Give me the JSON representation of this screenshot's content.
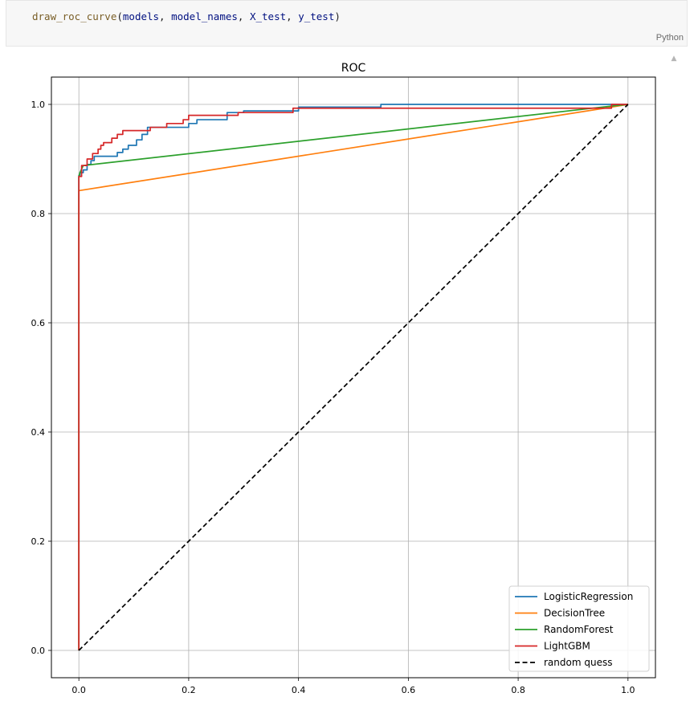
{
  "cell": {
    "code": {
      "function_name": "draw_roc_curve",
      "args": [
        "models",
        "model_names",
        "X_test",
        "y_test"
      ]
    },
    "language_label": "Python",
    "scroll_up_icon": "caret-up-icon"
  },
  "chart_data": {
    "type": "line",
    "title": "ROC",
    "xlabel": "",
    "ylabel": "",
    "xlim": [
      -0.05,
      1.05
    ],
    "ylim": [
      -0.05,
      1.05
    ],
    "xticks": [
      "0.0",
      "0.2",
      "0.4",
      "0.6",
      "0.8",
      "1.0"
    ],
    "yticks": [
      "0.0",
      "0.2",
      "0.4",
      "0.6",
      "0.8",
      "1.0"
    ],
    "grid": true,
    "legend_position": "bottom-right",
    "series": [
      {
        "name": "LogisticRegression",
        "color": "#1f77b4",
        "dash": false,
        "x": [
          0,
          0,
          0.002,
          0.002,
          0.008,
          0.008,
          0.015,
          0.015,
          0.022,
          0.022,
          0.028,
          0.028,
          0.07,
          0.07,
          0.08,
          0.08,
          0.09,
          0.09,
          0.105,
          0.105,
          0.115,
          0.115,
          0.125,
          0.125,
          0.2,
          0.2,
          0.215,
          0.215,
          0.27,
          0.27,
          0.3,
          0.3,
          0.4,
          0.4,
          0.55,
          0.55,
          1.0
        ],
        "y": [
          0,
          0.87,
          0.87,
          0.875,
          0.875,
          0.88,
          0.88,
          0.89,
          0.89,
          0.897,
          0.897,
          0.905,
          0.905,
          0.912,
          0.912,
          0.918,
          0.918,
          0.925,
          0.925,
          0.935,
          0.935,
          0.945,
          0.945,
          0.958,
          0.958,
          0.965,
          0.965,
          0.972,
          0.972,
          0.985,
          0.985,
          0.988,
          0.988,
          0.995,
          0.995,
          1.0,
          1.0
        ]
      },
      {
        "name": "DecisionTree",
        "color": "#ff7f0e",
        "dash": false,
        "x": [
          0,
          0,
          0.97,
          1.0
        ],
        "y": [
          0,
          0.842,
          0.995,
          1.0
        ]
      },
      {
        "name": "RandomForest",
        "color": "#2ca02c",
        "dash": false,
        "x": [
          0,
          0,
          0.002,
          0.008,
          0.97,
          1.0
        ],
        "y": [
          0,
          0.868,
          0.875,
          0.888,
          0.997,
          1.0
        ]
      },
      {
        "name": "LightGBM",
        "color": "#d62728",
        "dash": false,
        "x": [
          0,
          0,
          0.005,
          0.005,
          0.015,
          0.015,
          0.025,
          0.025,
          0.035,
          0.035,
          0.04,
          0.04,
          0.045,
          0.045,
          0.06,
          0.06,
          0.07,
          0.07,
          0.08,
          0.08,
          0.13,
          0.13,
          0.16,
          0.16,
          0.19,
          0.19,
          0.2,
          0.2,
          0.29,
          0.29,
          0.39,
          0.39,
          0.97,
          0.97,
          1.0
        ],
        "y": [
          0,
          0.868,
          0.868,
          0.888,
          0.888,
          0.9,
          0.9,
          0.91,
          0.91,
          0.918,
          0.918,
          0.925,
          0.925,
          0.93,
          0.93,
          0.938,
          0.938,
          0.945,
          0.945,
          0.952,
          0.952,
          0.958,
          0.958,
          0.965,
          0.965,
          0.972,
          0.972,
          0.98,
          0.98,
          0.985,
          0.985,
          0.993,
          0.993,
          1.0,
          1.0
        ]
      },
      {
        "name": "random quess",
        "color": "#000000",
        "dash": true,
        "x": [
          0,
          1
        ],
        "y": [
          0,
          1
        ]
      }
    ]
  }
}
